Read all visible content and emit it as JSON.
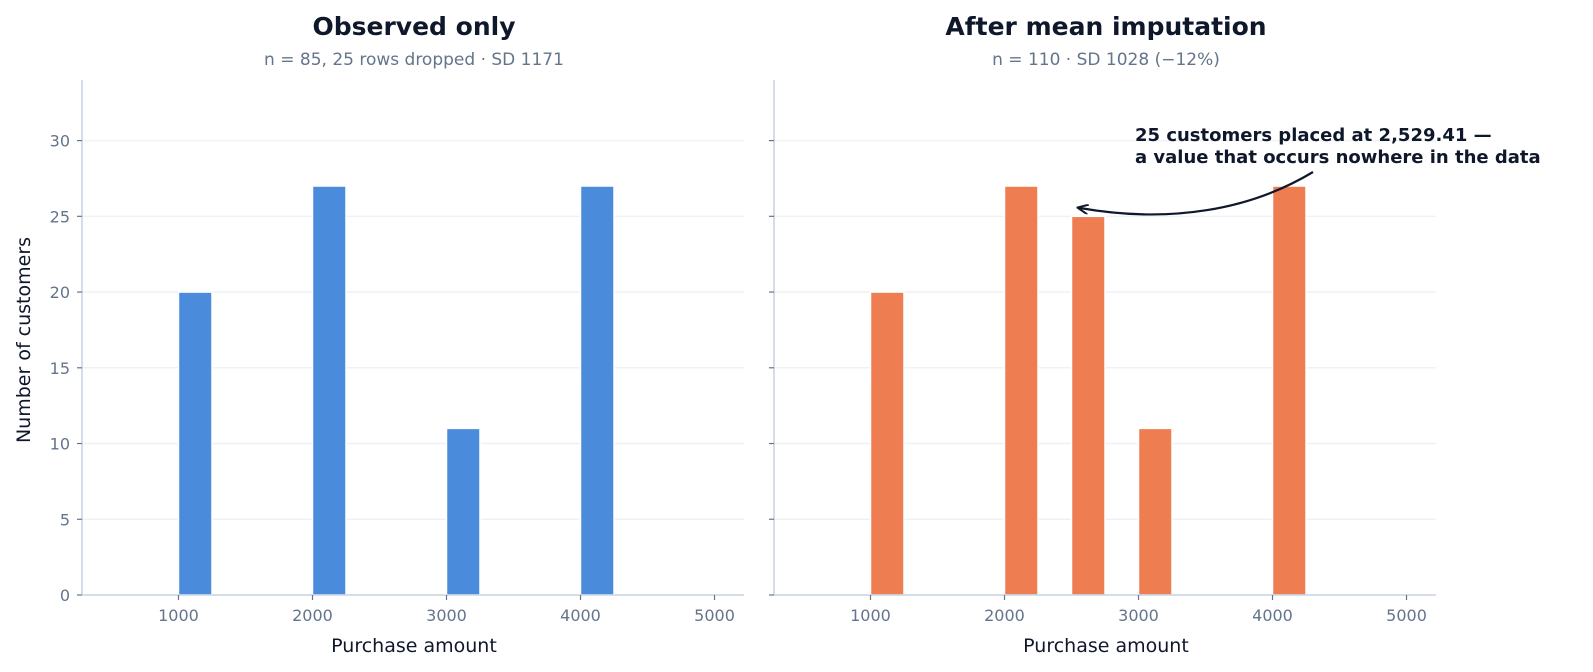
{
  "chart_data": [
    {
      "type": "bar",
      "title": "Observed only",
      "subtitle": "n = 85, 25 rows dropped  ·  SD 1171",
      "xlabel": "Purchase amount",
      "ylabel": "Number of customers",
      "xlim": [
        280,
        5220
      ],
      "ylim": [
        0,
        34
      ],
      "xticks": [
        1000,
        2000,
        3000,
        4000,
        5000
      ],
      "yticks": [
        0,
        5,
        10,
        15,
        20,
        25,
        30
      ],
      "bin_width": 250,
      "bars": [
        {
          "x": 1000,
          "count": 20
        },
        {
          "x": 2000,
          "count": 27
        },
        {
          "x": 3000,
          "count": 11
        },
        {
          "x": 4000,
          "count": 27
        }
      ],
      "color": "#4a8bdb",
      "grid": true
    },
    {
      "type": "bar",
      "title": "After mean imputation",
      "subtitle": "n = 110  ·  SD 1028 (−12%)",
      "xlabel": "Purchase amount",
      "ylabel": "",
      "xlim": [
        280,
        5220
      ],
      "ylim": [
        0,
        34
      ],
      "xticks": [
        1000,
        2000,
        3000,
        4000,
        5000
      ],
      "yticks": [
        0,
        5,
        10,
        15,
        20,
        25,
        30
      ],
      "bin_width": 250,
      "bars": [
        {
          "x": 1000,
          "count": 20
        },
        {
          "x": 2000,
          "count": 27
        },
        {
          "x": 2500,
          "count": 25
        },
        {
          "x": 3000,
          "count": 11
        },
        {
          "x": 4000,
          "count": 27
        }
      ],
      "color": "#ef7d52",
      "grid": true,
      "annotation": {
        "lines": [
          "25 customers placed at 2,529.41 —",
          "a value that occurs nowhere in the data"
        ],
        "target": {
          "x": 2529.41,
          "count": 25.5
        }
      }
    }
  ]
}
